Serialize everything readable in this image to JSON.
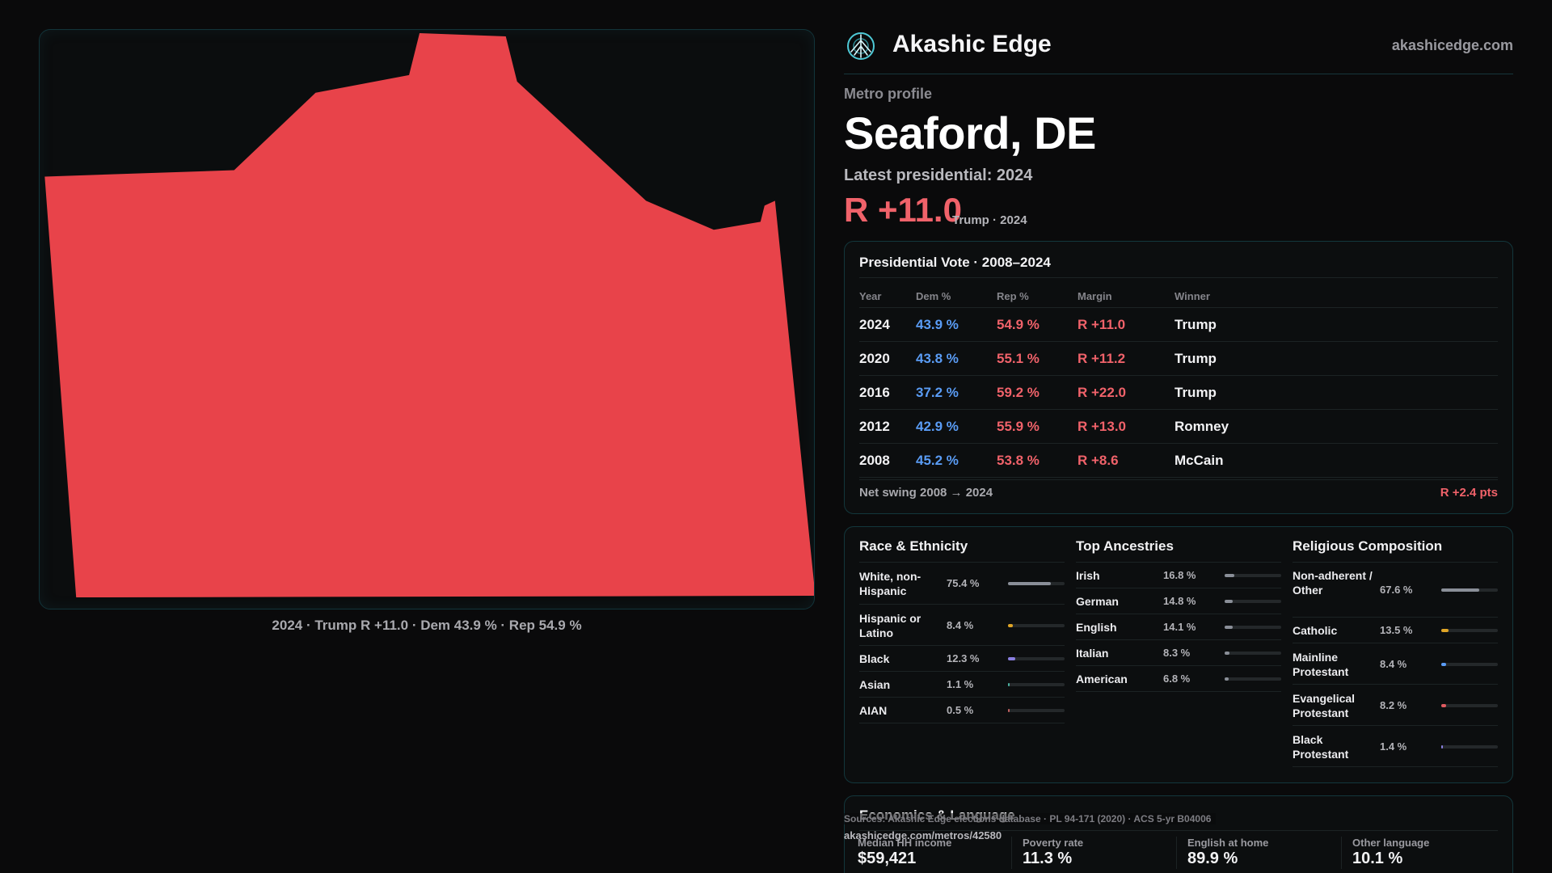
{
  "brand": {
    "name": "Akashic Edge",
    "url": "akashicedge.com",
    "logo_icon": "sun-compass-icon"
  },
  "metro": {
    "eyebrow": "Metro profile",
    "title": "Seaford, DE",
    "latest_label": "Latest presidential: 2024",
    "margin": "R +11.0",
    "margin_sub": "Trump · 2024"
  },
  "map": {
    "fill": "#e8434a",
    "caption": "2024 · Trump R +11.0 · Dem 43.9 % · Rep 54.9 %"
  },
  "vote": {
    "title": "Presidential Vote · 2008–2024",
    "headers": {
      "year": "Year",
      "dem": "Dem %",
      "rep": "Rep %",
      "margin": "Margin",
      "winner": "Winner"
    },
    "rows": [
      {
        "year": "2024",
        "dem": "43.9 %",
        "rep": "54.9 %",
        "margin": "R +11.0",
        "winner": "Trump"
      },
      {
        "year": "2020",
        "dem": "43.8 %",
        "rep": "55.1 %",
        "margin": "R +11.2",
        "winner": "Trump"
      },
      {
        "year": "2016",
        "dem": "37.2 %",
        "rep": "59.2 %",
        "margin": "R +22.0",
        "winner": "Trump"
      },
      {
        "year": "2012",
        "dem": "42.9 %",
        "rep": "55.9 %",
        "margin": "R +13.0",
        "winner": "Romney"
      },
      {
        "year": "2008",
        "dem": "45.2 %",
        "rep": "53.8 %",
        "margin": "R +8.6",
        "winner": "McCain"
      }
    ],
    "swing_label": "Net swing 2008 → 2024",
    "swing_value": "R +2.4 pts"
  },
  "race": {
    "title": "Race & Ethnicity",
    "items": [
      {
        "label": "White, non-Hispanic",
        "value": "75.4 %",
        "pct": 75.4,
        "color": "#8a8f98"
      },
      {
        "label": "Hispanic or Latino",
        "value": "8.4 %",
        "pct": 8.4,
        "color": "#e0a526"
      },
      {
        "label": "Black",
        "value": "12.3 %",
        "pct": 12.3,
        "color": "#8a7fe0"
      },
      {
        "label": "Asian",
        "value": "1.1 %",
        "pct": 1.1,
        "color": "#4bb0a0"
      },
      {
        "label": "AIAN",
        "value": "0.5 %",
        "pct": 0.5,
        "color": "#c06060"
      }
    ]
  },
  "ancestry": {
    "title": "Top Ancestries",
    "items": [
      {
        "label": "Irish",
        "value": "16.8 %",
        "pct": 16.8,
        "color": "#8a8f98"
      },
      {
        "label": "German",
        "value": "14.8 %",
        "pct": 14.8,
        "color": "#8a8f98"
      },
      {
        "label": "English",
        "value": "14.1 %",
        "pct": 14.1,
        "color": "#8a8f98"
      },
      {
        "label": "Italian",
        "value": "8.3 %",
        "pct": 8.3,
        "color": "#8a8f98"
      },
      {
        "label": "American",
        "value": "6.8 %",
        "pct": 6.8,
        "color": "#8a8f98"
      }
    ]
  },
  "religion": {
    "title": "Religious Composition",
    "items": [
      {
        "label": "Non-adherent / Other",
        "value": "67.6 %",
        "pct": 67.6,
        "color": "#8a8f98"
      },
      {
        "label": "Catholic",
        "value": "13.5 %",
        "pct": 13.5,
        "color": "#e0a526"
      },
      {
        "label": "Mainline Protestant",
        "value": "8.4 %",
        "pct": 8.4,
        "color": "#5a9cf5"
      },
      {
        "label": "Evangelical Protestant",
        "value": "8.2 %",
        "pct": 8.2,
        "color": "#e05a60"
      },
      {
        "label": "Black Protestant",
        "value": "1.4 %",
        "pct": 1.4,
        "color": "#8a7fe0"
      }
    ]
  },
  "econ": {
    "title": "Economics & Language",
    "items": [
      {
        "label": "Median HH income",
        "value": "$59,421"
      },
      {
        "label": "Poverty rate",
        "value": "11.3 %"
      },
      {
        "label": "English at home",
        "value": "89.9 %"
      },
      {
        "label": "Other language",
        "value": "10.1 %"
      }
    ]
  },
  "sources": {
    "text": "Sources: Akashic Edge elections database · PL 94-171 (2020) · ACS 5-yr B04006",
    "url": "akashicedge.com/metros/42580"
  }
}
